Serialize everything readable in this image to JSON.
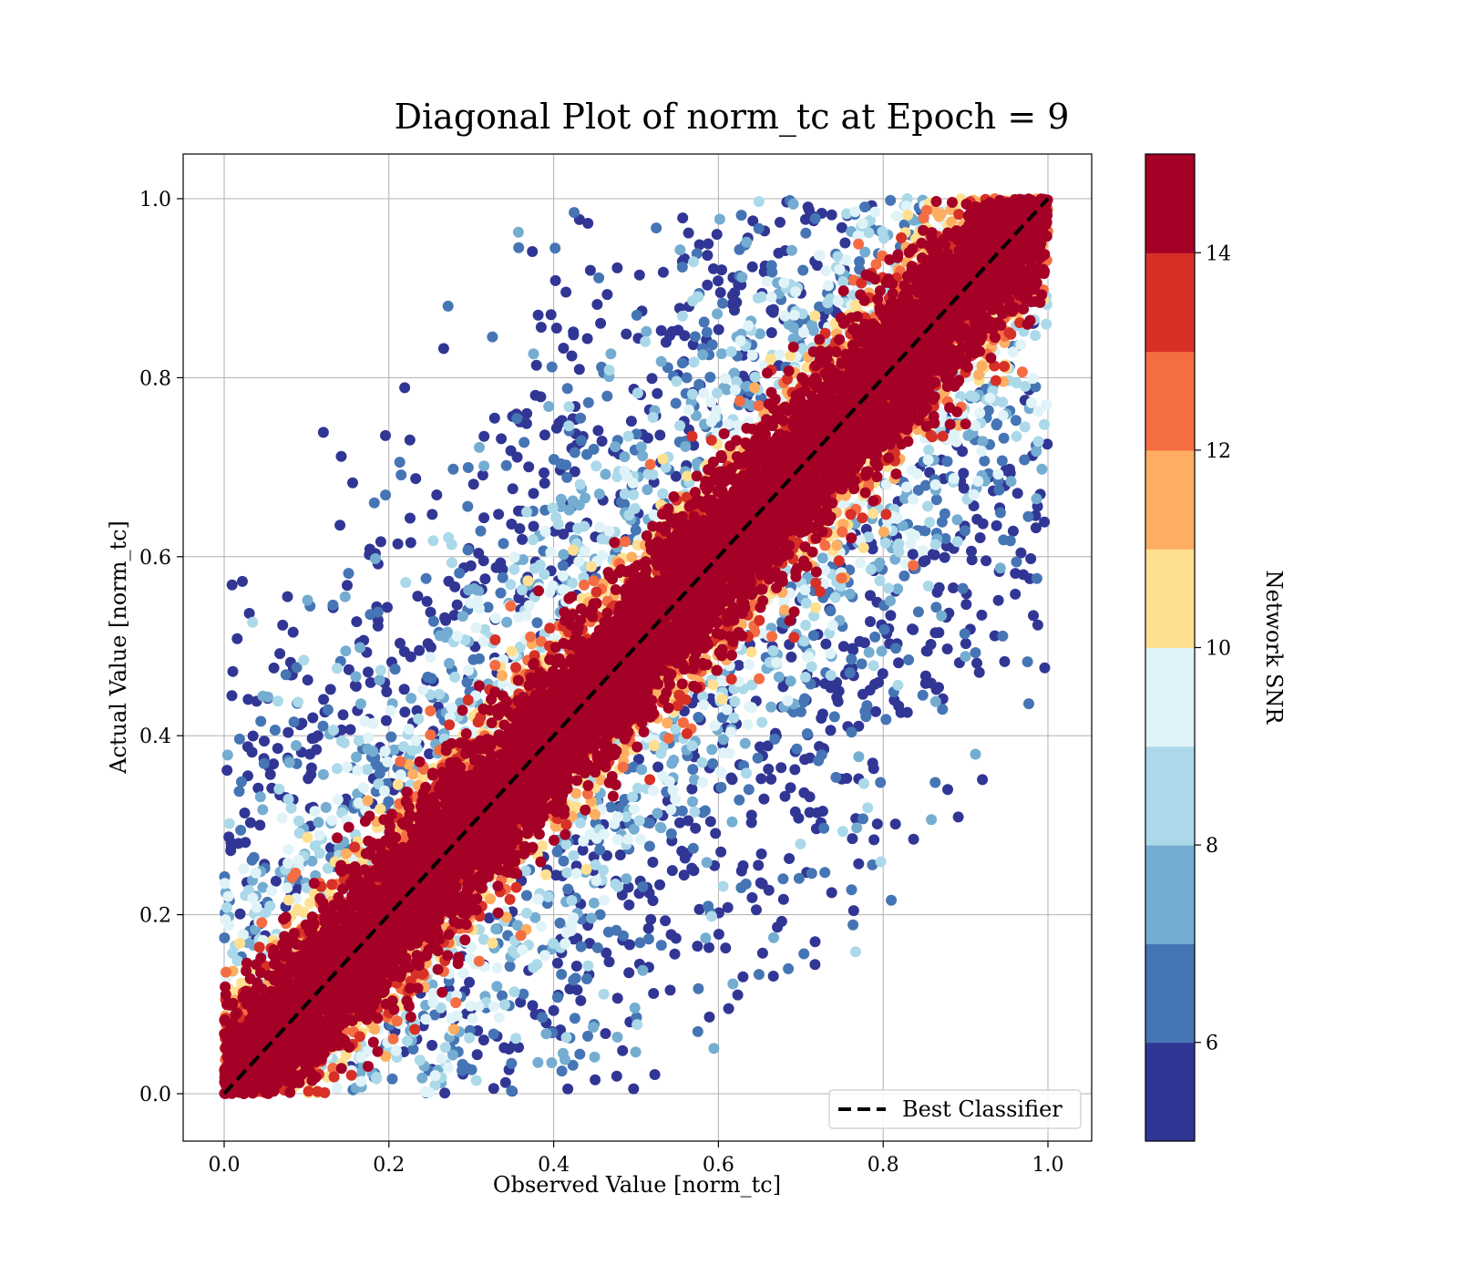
{
  "chart_data": {
    "type": "scatter",
    "title": "Diagonal Plot of norm_tc at Epoch = 9",
    "xlabel": "Observed Value [norm_tc]",
    "ylabel": "Actual Value [norm_tc]",
    "xlim": [
      -0.05,
      1.05
    ],
    "ylim": [
      -0.05,
      1.05
    ],
    "x_ticks": [
      "0.0",
      "0.2",
      "0.4",
      "0.6",
      "0.8",
      "1.0"
    ],
    "y_ticks": [
      "0.0",
      "0.2",
      "0.4",
      "0.6",
      "0.8",
      "1.0"
    ],
    "grid": true,
    "reference_line": {
      "label": "Best Classifier",
      "x": [
        0,
        1
      ],
      "y": [
        0,
        1
      ],
      "style": "dashed",
      "color": "#000000"
    },
    "legend": {
      "placement": "lower-right",
      "entries": [
        "Best Classifier"
      ]
    },
    "points_description": "Dense band of high-SNR points along y = x; low-SNR points scattered widely within the region |y - x| < ~0.6, clipped to [0, 1].",
    "colorbar": {
      "label": "Network SNR",
      "range": [
        5,
        15
      ],
      "tick_values": [
        6,
        8,
        10,
        12,
        14
      ],
      "tick_labels": [
        "6",
        "8",
        "10",
        "12",
        "14"
      ],
      "levels": [
        "#313695",
        "#4575b4",
        "#74add1",
        "#abd9e9",
        "#e0f3f8",
        "#fee090",
        "#fdae61",
        "#f46d43",
        "#d73027",
        "#a50026"
      ]
    }
  }
}
